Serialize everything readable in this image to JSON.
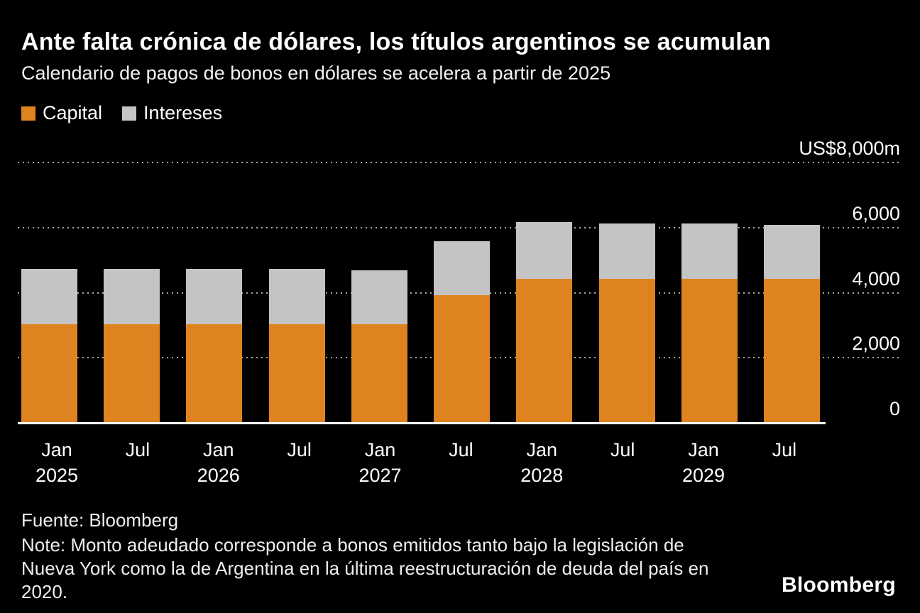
{
  "title": "Ante falta crónica de dólares, los títulos argentinos se acumulan",
  "subtitle": "Calendario de pagos de bonos en dólares se acelera a partir de 2025",
  "legend": [
    {
      "label": "Capital",
      "color": "#DF8320"
    },
    {
      "label": "Intereses",
      "color": "#C4C4C4"
    }
  ],
  "colors": {
    "background": "#000000",
    "capital": "#DF8320",
    "interest": "#C4C4C4",
    "gridline": "#A8A8A8",
    "baseline": "#FFFFFF",
    "text": "#FFFFFF"
  },
  "y_axis": {
    "labels": [
      "US$8,000m",
      "6,000",
      "4,000",
      "2,000",
      "0"
    ],
    "values": [
      8000,
      6000,
      4000,
      2000,
      0
    ]
  },
  "x_axis": {
    "ticks": [
      {
        "month": "Jan",
        "year": "2025"
      },
      {
        "month": "Jul",
        "year": ""
      },
      {
        "month": "Jan",
        "year": "2026"
      },
      {
        "month": "Jul",
        "year": ""
      },
      {
        "month": "Jan",
        "year": "2027"
      },
      {
        "month": "Jul",
        "year": ""
      },
      {
        "month": "Jan",
        "year": "2028"
      },
      {
        "month": "Jul",
        "year": ""
      },
      {
        "month": "Jan",
        "year": "2029"
      },
      {
        "month": "Jul",
        "year": ""
      }
    ]
  },
  "chart_data": {
    "type": "bar",
    "stacked": true,
    "title": "Ante falta crónica de dólares, los títulos argentinos se acumulan",
    "subtitle": "Calendario de pagos de bonos en dólares se acelera a partir de 2025",
    "unit": "US$ millions",
    "categories": [
      "Jan 2025",
      "Jul 2025",
      "Jan 2026",
      "Jul 2026",
      "Jan 2027",
      "Jul 2027",
      "Jan 2028",
      "Jul 2028",
      "Jan 2029",
      "Jul 2029"
    ],
    "series": [
      {
        "name": "Capital",
        "color": "#DF8320",
        "values": [
          3050,
          3050,
          3050,
          3050,
          3050,
          3950,
          4450,
          4450,
          4450,
          4450
        ]
      },
      {
        "name": "Intereses",
        "color": "#C4C4C4",
        "values": [
          1700,
          1700,
          1700,
          1700,
          1650,
          1650,
          1750,
          1700,
          1700,
          1650
        ]
      }
    ],
    "ylim": [
      0,
      8000
    ],
    "y_tick_values": [
      0,
      2000,
      4000,
      6000,
      8000
    ],
    "grid": "horizontal-dotted",
    "legend_position": "top-left"
  },
  "footer": {
    "source": "Fuente: Bloomberg",
    "note": "Note: Monto adeudado corresponde a bonos emitidos tanto bajo la legislación de Nueva York como la de Argentina en la última reestructuración de deuda del país en 2020.",
    "logo": "Bloomberg"
  }
}
